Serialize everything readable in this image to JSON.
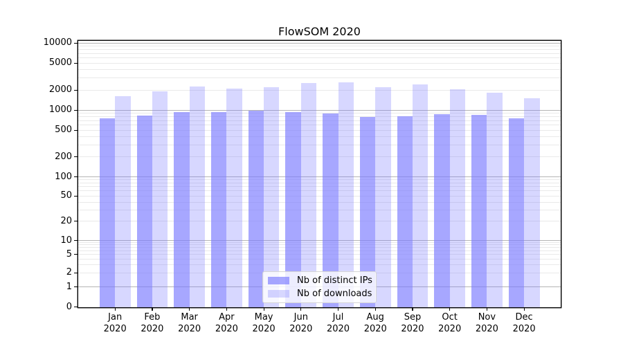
{
  "title": "FlowSOM 2020",
  "chart_data": {
    "type": "bar",
    "title": "FlowSOM 2020",
    "categories": [
      "Jan 2020",
      "Feb 2020",
      "Mar 2020",
      "Apr 2020",
      "May 2020",
      "Jun 2020",
      "Jul 2020",
      "Aug 2020",
      "Sep 2020",
      "Oct 2020",
      "Nov 2020",
      "Dec 2020"
    ],
    "x_tick_months": [
      "Jan",
      "Feb",
      "Mar",
      "Apr",
      "May",
      "Jun",
      "Jul",
      "Aug",
      "Sep",
      "Oct",
      "Nov",
      "Dec"
    ],
    "x_tick_year": "2020",
    "series": [
      {
        "name": "Nb of distinct IPs",
        "color": "#7c7cff",
        "alpha": 0.67,
        "values": [
          750,
          820,
          940,
          940,
          990,
          925,
          900,
          790,
          810,
          880,
          845,
          750
        ]
      },
      {
        "name": "Nb of downloads",
        "color": "#7c7cff",
        "alpha": 0.3,
        "values": [
          1620,
          1890,
          2240,
          2080,
          2215,
          2530,
          2620,
          2210,
          2420,
          2050,
          1820,
          1490
        ]
      }
    ],
    "yscale": "log with zero baseline",
    "ylim": [
      0,
      10000
    ],
    "ytick_labels": [
      "10000",
      "5000",
      "2000",
      "1000",
      "500",
      "200",
      "100",
      "50",
      "20",
      "10",
      "5",
      "2",
      "1",
      "0"
    ],
    "ytick_values": [
      10000,
      5000,
      2000,
      1000,
      500,
      200,
      100,
      50,
      20,
      10,
      5,
      2,
      1,
      0
    ],
    "major_gridline_values": [
      10000,
      1000,
      100,
      10,
      1
    ],
    "grid": true,
    "legend_position": "lower center",
    "xlabel": "",
    "ylabel": ""
  },
  "legend": {
    "items": [
      {
        "label": "Nb of distinct IPs",
        "swatch_color": "#7c7cff",
        "swatch_alpha": 0.67
      },
      {
        "label": "Nb of downloads",
        "swatch_color": "#7c7cff",
        "swatch_alpha": 0.3
      }
    ]
  },
  "colors": {
    "bar_base": "#7c7cff",
    "grid_minor": "#e9e9e9",
    "grid_major": "#b4b4b4",
    "axis": "#000000",
    "background": "#ffffff"
  }
}
